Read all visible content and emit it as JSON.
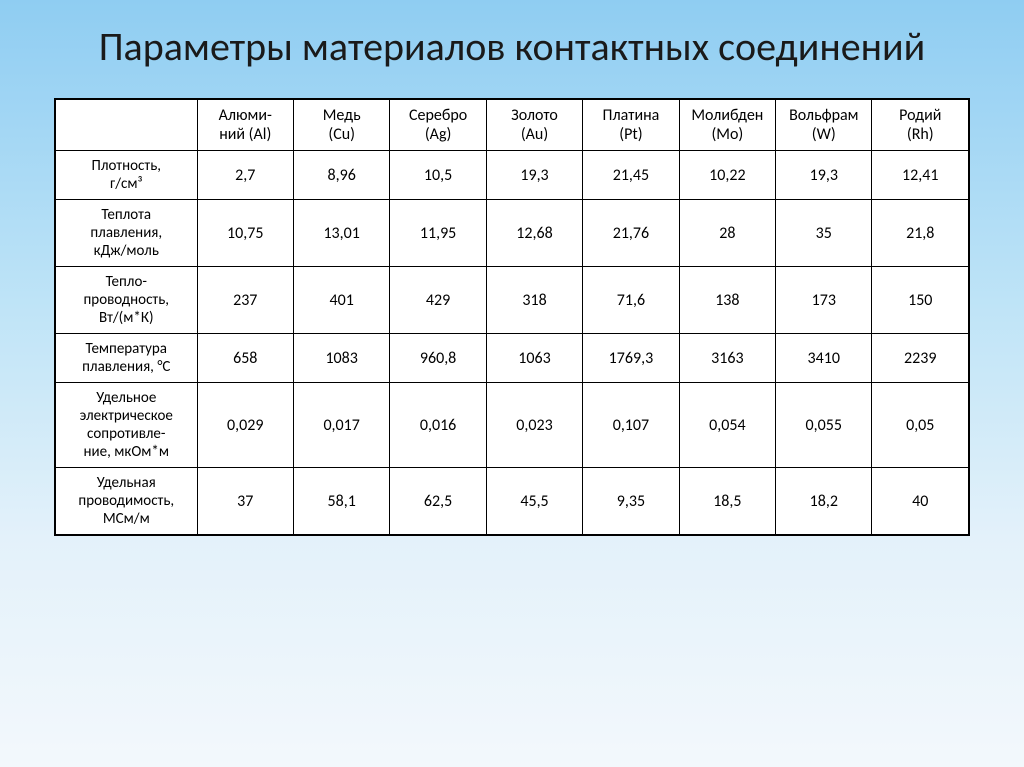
{
  "title": "Параметры материалов контактных соединений",
  "table": {
    "corner": "",
    "materials": [
      "Алюми-\nний (Al)",
      "Медь\n(Cu)",
      "Серебро\n(Ag)",
      "Золото\n(Au)",
      "Платина\n(Pt)",
      "Молибден\n(Mo)",
      "Вольфрам\n(W)",
      "Родий\n(Rh)"
    ],
    "rows": [
      {
        "label": "Плотность,\nг/см³",
        "values": [
          "2,7",
          "8,96",
          "10,5",
          "19,3",
          "21,45",
          "10,22",
          "19,3",
          "12,41"
        ]
      },
      {
        "label": "Теплота\nплавления,\nкДж/моль",
        "values": [
          "10,75",
          "13,01",
          "11,95",
          "12,68",
          "21,76",
          "28",
          "35",
          "21,8"
        ]
      },
      {
        "label": "Тепло-\nпроводность,\nВт/(м*К)",
        "values": [
          "237",
          "401",
          "429",
          "318",
          "71,6",
          "138",
          "173",
          "150"
        ]
      },
      {
        "label": "Температура\nплавления, °С",
        "values": [
          "658",
          "1083",
          "960,8",
          "1063",
          "1769,3",
          "3163",
          "3410",
          "2239"
        ]
      },
      {
        "label": "Удельное\nэлектрическое\nсопротивле-\nние, мкОм*м",
        "values": [
          "0,029",
          "0,017",
          "0,016",
          "0,023",
          "0,107",
          "0,054",
          "0,055",
          "0,05"
        ]
      },
      {
        "label": "Удельная\nпроводимость,\nМСм/м",
        "values": [
          "37",
          "58,1",
          "62,5",
          "45,5",
          "9,35",
          "18,5",
          "18,2",
          "40"
        ]
      }
    ]
  },
  "style": {
    "background_gradient": [
      "#8fcdf2",
      "#bfe4f7",
      "#e3f1fa",
      "#f3f8fc"
    ],
    "title_fontsize": 40,
    "cell_fontsize": 16,
    "border_color": "#000000",
    "text_color": "#000000",
    "table_bg": "#ffffff"
  }
}
